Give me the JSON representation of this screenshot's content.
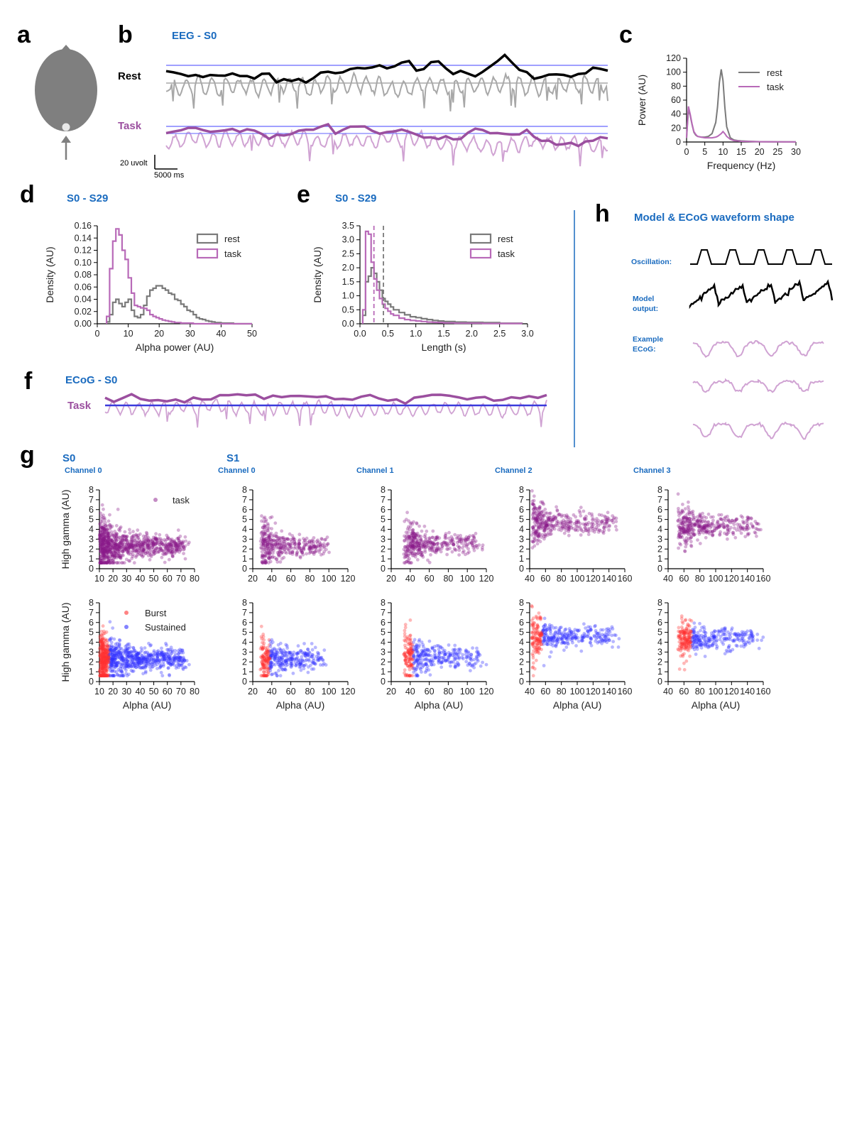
{
  "figure": {
    "panel_letters": [
      "a",
      "b",
      "c",
      "d",
      "e",
      "f",
      "g",
      "h"
    ],
    "colors": {
      "accent_blue": "#1a6bbf",
      "gray": "#7a7a7a",
      "light_gray": "#a8a8a8",
      "black": "#000000",
      "purple": "#9b4f9f",
      "light_purple": "#d0a3d3",
      "dark_purple": "#8a1a8a",
      "ref_line": "#8080ff",
      "burst": "#ff3030",
      "sustained": "#3030ff"
    }
  },
  "panel_a": {
    "icons": [
      "head-icon",
      "nose-arrow-icon",
      "electrode-icon",
      "electrode-arrow-icon"
    ]
  },
  "panel_b": {
    "title": "EEG - S0",
    "rest_label": "Rest",
    "task_label": "Task",
    "scale_y": "20 uvolt",
    "scale_x": "5000 ms"
  },
  "panel_c": {
    "chart_data": {
      "type": "line",
      "xlabel": "Frequency (Hz)",
      "ylabel": "Power (AU)",
      "xlim": [
        0,
        30
      ],
      "ylim": [
        0,
        120
      ],
      "xticks": [
        "0",
        "5",
        "10",
        "15",
        "20",
        "25",
        "30"
      ],
      "yticks": [
        "0",
        "20",
        "40",
        "60",
        "80",
        "100",
        "120"
      ],
      "legend": "upper right",
      "x": [
        0,
        0.5,
        1,
        1.5,
        2,
        2.5,
        3,
        4,
        5,
        6,
        7,
        8,
        8.5,
        9,
        9.5,
        10,
        10.5,
        11,
        12,
        13,
        14,
        15,
        17,
        20,
        25,
        30
      ],
      "series": [
        {
          "name": "rest",
          "color": "#7a7a7a",
          "values": [
            5,
            47,
            38,
            25,
            14,
            10,
            8,
            7,
            7,
            8,
            12,
            28,
            50,
            85,
            104,
            88,
            50,
            22,
            6,
            3,
            2,
            1.5,
            1,
            0.5,
            0.3,
            0.2
          ]
        },
        {
          "name": "task",
          "color": "#b86ab8",
          "values": [
            6,
            51,
            40,
            26,
            15,
            11,
            8,
            7,
            6,
            6,
            6,
            7,
            8,
            10,
            12,
            15,
            12,
            8,
            4,
            2,
            1.5,
            1,
            0.7,
            0.4,
            0.2,
            0.1
          ]
        }
      ]
    }
  },
  "panel_d": {
    "title": "S0 - S29",
    "chart_data": {
      "type": "histogram",
      "xlabel": "Alpha power (AU)",
      "ylabel": "Density (AU)",
      "xlim": [
        0,
        50
      ],
      "ylim": [
        0,
        0.16
      ],
      "xticks": [
        "0",
        "10",
        "20",
        "30",
        "40",
        "50"
      ],
      "yticks": [
        "0.00",
        "0.02",
        "0.04",
        "0.06",
        "0.08",
        "0.10",
        "0.12",
        "0.14",
        "0.16"
      ],
      "legend": "upper right",
      "bin_edges": [
        3,
        4,
        5,
        6,
        7,
        8,
        9,
        10,
        11,
        12,
        13,
        14,
        15,
        16,
        17,
        18,
        19,
        20,
        21,
        22,
        23,
        24,
        25,
        26,
        27,
        28,
        29,
        30,
        31,
        32,
        33,
        34,
        35,
        36,
        37,
        38,
        39,
        40,
        41,
        42,
        43,
        44,
        45,
        46,
        47,
        48,
        49,
        50
      ],
      "series": [
        {
          "name": "rest",
          "color": "#7a7a7a",
          "values": [
            0.003,
            0.015,
            0.035,
            0.04,
            0.033,
            0.028,
            0.035,
            0.04,
            0.022,
            0.012,
            0.01,
            0.015,
            0.03,
            0.045,
            0.055,
            0.058,
            0.062,
            0.062,
            0.058,
            0.055,
            0.05,
            0.048,
            0.04,
            0.038,
            0.032,
            0.028,
            0.022,
            0.02,
            0.015,
            0.01,
            0.008,
            0.007,
            0.005,
            0.004,
            0.003,
            0.002,
            0.002,
            0.001,
            0.001,
            0.001,
            0.001,
            0.0,
            0.0,
            0.0,
            0.0,
            0.0,
            0.0
          ]
        },
        {
          "name": "task",
          "color": "#b86ab8",
          "values": [
            0.012,
            0.09,
            0.135,
            0.155,
            0.145,
            0.12,
            0.105,
            0.075,
            0.05,
            0.03,
            0.028,
            0.026,
            0.025,
            0.022,
            0.015,
            0.012,
            0.01,
            0.008,
            0.006,
            0.005,
            0.004,
            0.003,
            0.002,
            0.002,
            0.001,
            0.001,
            0.001,
            0.001,
            0.0,
            0.0,
            0.0,
            0.0,
            0.0,
            0.0,
            0.0,
            0.0,
            0.0,
            0.0,
            0.0,
            0.0,
            0.0,
            0.0,
            0.0,
            0.0,
            0.0,
            0.0,
            0.0
          ]
        }
      ]
    }
  },
  "panel_e": {
    "title": "S0 - S29",
    "chart_data": {
      "type": "histogram",
      "xlabel": "Length (s)",
      "ylabel": "Density (AU)",
      "xlim": [
        0,
        3.0
      ],
      "ylim": [
        0,
        3.5
      ],
      "xticks": [
        "0.0",
        "0.5",
        "1.0",
        "1.5",
        "2.0",
        "2.5",
        "3.0"
      ],
      "yticks": [
        "0.0",
        "0.5",
        "1.0",
        "1.5",
        "2.0",
        "2.5",
        "3.0",
        "3.5"
      ],
      "legend": "upper right",
      "medians": [
        {
          "series": "task",
          "x": 0.25
        },
        {
          "series": "rest",
          "x": 0.42
        }
      ],
      "bin_edges": [
        0.05,
        0.1,
        0.15,
        0.2,
        0.25,
        0.3,
        0.35,
        0.4,
        0.45,
        0.5,
        0.55,
        0.6,
        0.7,
        0.8,
        0.9,
        1.0,
        1.1,
        1.2,
        1.3,
        1.4,
        1.5,
        1.7,
        1.9,
        2.2,
        2.5,
        2.9
      ],
      "series": [
        {
          "name": "rest",
          "color": "#7a7a7a",
          "values": [
            0.3,
            1.5,
            1.7,
            2.0,
            1.8,
            1.5,
            1.2,
            0.9,
            0.8,
            0.7,
            0.6,
            0.5,
            0.4,
            0.32,
            0.25,
            0.22,
            0.18,
            0.15,
            0.12,
            0.1,
            0.08,
            0.06,
            0.05,
            0.04,
            0.02
          ]
        },
        {
          "name": "task",
          "color": "#b86ab8",
          "values": [
            0.5,
            3.3,
            3.2,
            2.2,
            1.6,
            1.2,
            0.9,
            0.7,
            0.55,
            0.45,
            0.35,
            0.3,
            0.2,
            0.15,
            0.12,
            0.1,
            0.08,
            0.06,
            0.05,
            0.04,
            0.03,
            0.02,
            0.02,
            0.01,
            0.01
          ]
        }
      ]
    }
  },
  "panel_f": {
    "title": "ECoG - S0",
    "task_label": "Task"
  },
  "panel_g": {
    "subject_labels": [
      "S0",
      "S1"
    ],
    "top_legend": "task",
    "bottom_legend": [
      "Burst",
      "Sustained"
    ],
    "ylabel": "High gamma (AU)",
    "xlabel": "Alpha (AU)",
    "xlabel_last": "Alpha  (AU)",
    "yticks": [
      "0",
      "1",
      "2",
      "3",
      "4",
      "5",
      "6",
      "7",
      "8"
    ],
    "chart_data": [
      {
        "type": "scatter",
        "title": "Channel 0",
        "subject": "S0",
        "xticks": [
          "10",
          "20",
          "30",
          "40",
          "50",
          "60",
          "70",
          "80"
        ],
        "xlim": [
          10,
          80
        ],
        "ylim": [
          0,
          8
        ],
        "cloud": {
          "x_mode": 15,
          "x_min": 10,
          "x_max": 78,
          "y_center": 2.3,
          "n": 1400,
          "burst_split": 17
        }
      },
      {
        "type": "scatter",
        "title": "Channel 0",
        "subject": "S1",
        "xticks": [
          "20",
          "40",
          "60",
          "80",
          "100",
          "120"
        ],
        "xlim": [
          20,
          120
        ],
        "ylim": [
          0,
          8
        ],
        "cloud": {
          "x_mode": 38,
          "x_min": 28,
          "x_max": 100,
          "y_center": 2.3,
          "n": 380,
          "burst_split": 38
        }
      },
      {
        "type": "scatter",
        "title": "Channel 1",
        "subject": "S1",
        "xticks": [
          "20",
          "40",
          "60",
          "80",
          "100",
          "120"
        ],
        "xlim": [
          20,
          120
        ],
        "ylim": [
          0,
          8
        ],
        "cloud": {
          "x_mode": 45,
          "x_min": 33,
          "x_max": 115,
          "y_center": 2.5,
          "n": 380,
          "burst_split": 43
        }
      },
      {
        "type": "scatter",
        "title": "Channel 2",
        "subject": "S1",
        "xticks": [
          "40",
          "60",
          "80",
          "100",
          "120",
          "140",
          "160"
        ],
        "xlim": [
          40,
          160
        ],
        "ylim": [
          0,
          8
        ],
        "cloud": {
          "x_mode": 55,
          "x_min": 42,
          "x_max": 155,
          "y_center": 4.6,
          "n": 380,
          "burst_split": 56
        }
      },
      {
        "type": "scatter",
        "title": "Channel 3",
        "subject": "S1",
        "xticks": [
          "40",
          "60",
          "80",
          "100",
          "120",
          "140",
          "160"
        ],
        "xlim": [
          40,
          160
        ],
        "ylim": [
          0,
          8
        ],
        "cloud": {
          "x_mode": 68,
          "x_min": 52,
          "x_max": 155,
          "y_center": 4.3,
          "n": 380,
          "burst_split": 70
        }
      }
    ]
  },
  "panel_h": {
    "title": "Model & ECoG waveform shape",
    "oscillation_label": "Oscillation:",
    "model_label_1": "Model",
    "model_label_2": "output:",
    "ecog_label_1": "Example",
    "ecog_label_2": "ECoG:"
  }
}
